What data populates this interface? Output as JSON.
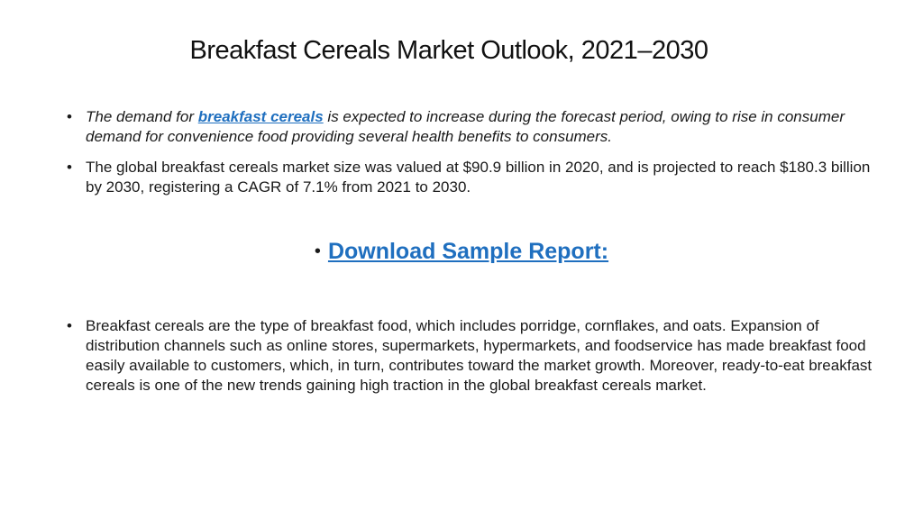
{
  "title": "Breakfast Cereals Market Outlook, 2021–2030",
  "bullet_char": "•",
  "bullets": [
    {
      "pre": "The demand for ",
      "link": "breakfast cereals",
      "post": " is expected to increase during the forecast period, owing to rise in consumer demand for convenience food providing several health benefits to consumers."
    },
    {
      "text": "The global breakfast cereals market size was valued at $90.9 billion in 2020, and is projected to reach $180.3 billion by 2030, registering a CAGR of 7.1% from 2021 to 2030."
    },
    {
      "link": "Download Sample Report:"
    },
    {
      "text": "Breakfast cereals are the type of breakfast food, which includes porridge, cornflakes, and oats. Expansion of distribution channels such as online stores, supermarkets, hypermarkets, and foodservice has made breakfast food easily available to customers, which, in turn, contributes toward the market growth. Moreover, ready-to-eat breakfast cereals is one of the new trends gaining high traction in the global breakfast cereals market."
    }
  ],
  "colors": {
    "link": "#1f6fbf",
    "text": "#1a1a1a",
    "background": "#ffffff"
  }
}
